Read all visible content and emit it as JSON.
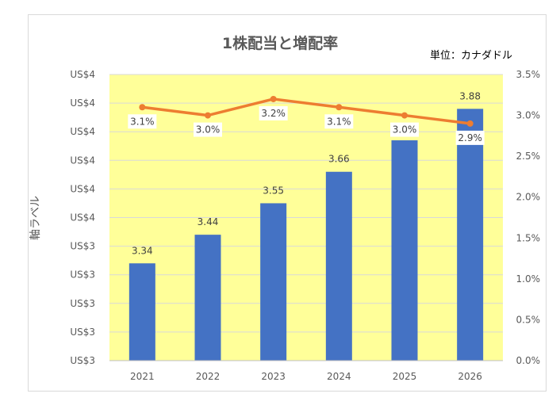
{
  "chart_data": {
    "type": "bar+line",
    "title": "1株配当と増配率",
    "unit_note": "単位：カナダドル",
    "ylabel": "軸ラベル",
    "categories": [
      "2021",
      "2022",
      "2023",
      "2024",
      "2025",
      "2026"
    ],
    "series": [
      {
        "name": "1株配当",
        "type": "bar",
        "axis": "left",
        "color": "#4472c4",
        "values": [
          3.34,
          3.44,
          3.55,
          3.66,
          3.77,
          3.88
        ],
        "data_labels": [
          "3.34",
          "3.44",
          "3.55",
          "3.66",
          "",
          "3.88"
        ]
      },
      {
        "name": "増配率",
        "type": "line",
        "axis": "right",
        "color": "#ed7d31",
        "values": [
          3.1,
          3.0,
          3.2,
          3.1,
          3.0,
          2.9
        ],
        "data_labels": [
          "3.1%",
          "3.0%",
          "3.2%",
          "3.1%",
          "3.0%",
          "2.9%"
        ]
      }
    ],
    "left_axis": {
      "min": 3.0,
      "max": 4.0,
      "tick_labels": [
        "US$3",
        "US$3",
        "US$3",
        "US$3",
        "US$3",
        "US$4",
        "US$4",
        "US$4",
        "US$4",
        "US$4",
        "US$4"
      ]
    },
    "right_axis": {
      "min": 0.0,
      "max": 3.5,
      "tick_labels": [
        "0.0%",
        "0.5%",
        "1.0%",
        "1.5%",
        "2.0%",
        "2.5%",
        "3.0%",
        "3.5%"
      ]
    },
    "plot_background": "#ffff99",
    "grid": true
  }
}
